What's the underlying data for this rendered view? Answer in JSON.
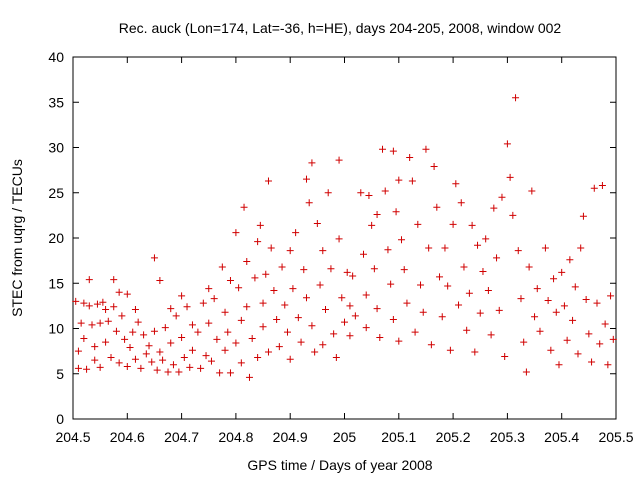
{
  "chart_data": {
    "type": "scatter",
    "title": "Rec. auck (Lon=174, Lat=-36, h=HE), days 204-205, 2008, window 002",
    "xlabel": "GPS time / Days of year 2008",
    "ylabel": "STEC from uqrg / TECUs",
    "xlim": [
      204.5,
      205.5
    ],
    "ylim": [
      0,
      40
    ],
    "xticks": [
      204.5,
      204.6,
      204.7,
      204.8,
      204.9,
      205,
      205.1,
      205.2,
      205.3,
      205.4,
      205.5
    ],
    "xtick_labels": [
      "204.5",
      "204.6",
      "204.7",
      "204.8",
      "204.9",
      "205",
      "205.1",
      "205.2",
      "205.3",
      "205.4",
      "205.5"
    ],
    "yticks": [
      0,
      5,
      10,
      15,
      20,
      25,
      30,
      35,
      40
    ],
    "ytick_labels": [
      "0",
      "5",
      "10",
      "15",
      "20",
      "25",
      "30",
      "35",
      "40"
    ],
    "grid": false,
    "marker": "plus",
    "color": "#d00000",
    "series": [
      {
        "name": "STEC",
        "points": [
          [
            204.505,
            13.0
          ],
          [
            204.51,
            5.6
          ],
          [
            204.51,
            7.5
          ],
          [
            204.515,
            10.6
          ],
          [
            204.52,
            12.8
          ],
          [
            204.52,
            8.9
          ],
          [
            204.525,
            5.5
          ],
          [
            204.53,
            15.4
          ],
          [
            204.53,
            12.5
          ],
          [
            204.535,
            10.4
          ],
          [
            204.54,
            8.0
          ],
          [
            204.54,
            6.5
          ],
          [
            204.545,
            12.7
          ],
          [
            204.55,
            10.6
          ],
          [
            204.55,
            5.7
          ],
          [
            204.555,
            12.9
          ],
          [
            204.56,
            12.1
          ],
          [
            204.56,
            8.5
          ],
          [
            204.565,
            10.8
          ],
          [
            204.57,
            6.8
          ],
          [
            204.575,
            15.4
          ],
          [
            204.575,
            12.4
          ],
          [
            204.58,
            9.7
          ],
          [
            204.585,
            14.0
          ],
          [
            204.585,
            6.2
          ],
          [
            204.59,
            11.4
          ],
          [
            204.595,
            8.8
          ],
          [
            204.6,
            13.8
          ],
          [
            204.6,
            5.8
          ],
          [
            204.605,
            7.9
          ],
          [
            204.61,
            9.6
          ],
          [
            204.615,
            12.1
          ],
          [
            204.615,
            6.6
          ],
          [
            204.62,
            10.7
          ],
          [
            204.625,
            5.6
          ],
          [
            204.63,
            9.3
          ],
          [
            204.635,
            7.2
          ],
          [
            204.64,
            8.1
          ],
          [
            204.645,
            6.3
          ],
          [
            204.65,
            17.8
          ],
          [
            204.65,
            9.7
          ],
          [
            204.655,
            5.4
          ],
          [
            204.66,
            15.3
          ],
          [
            204.66,
            7.4
          ],
          [
            204.665,
            6.5
          ],
          [
            204.67,
            10.1
          ],
          [
            204.675,
            5.2
          ],
          [
            204.68,
            12.2
          ],
          [
            204.68,
            8.4
          ],
          [
            204.685,
            6.0
          ],
          [
            204.69,
            11.4
          ],
          [
            204.695,
            5.2
          ],
          [
            204.7,
            13.6
          ],
          [
            204.7,
            9.0
          ],
          [
            204.705,
            6.8
          ],
          [
            204.71,
            12.4
          ],
          [
            204.715,
            5.7
          ],
          [
            204.72,
            10.4
          ],
          [
            204.72,
            7.6
          ],
          [
            204.73,
            9.6
          ],
          [
            204.735,
            5.6
          ],
          [
            204.74,
            12.8
          ],
          [
            204.745,
            7.0
          ],
          [
            204.75,
            14.4
          ],
          [
            204.75,
            10.6
          ],
          [
            204.755,
            6.4
          ],
          [
            204.76,
            13.3
          ],
          [
            204.765,
            8.8
          ],
          [
            204.77,
            5.1
          ],
          [
            204.775,
            16.8
          ],
          [
            204.78,
            11.8
          ],
          [
            204.78,
            7.6
          ],
          [
            204.785,
            9.6
          ],
          [
            204.79,
            15.3
          ],
          [
            204.79,
            5.1
          ],
          [
            204.8,
            20.6
          ],
          [
            204.8,
            8.4
          ],
          [
            204.805,
            14.5
          ],
          [
            204.81,
            10.9
          ],
          [
            204.81,
            6.2
          ],
          [
            204.815,
            23.4
          ],
          [
            204.82,
            17.4
          ],
          [
            204.82,
            12.4
          ],
          [
            204.825,
            4.6
          ],
          [
            204.83,
            8.9
          ],
          [
            204.835,
            15.6
          ],
          [
            204.84,
            19.6
          ],
          [
            204.84,
            6.8
          ],
          [
            204.845,
            21.4
          ],
          [
            204.85,
            12.8
          ],
          [
            204.85,
            10.2
          ],
          [
            204.855,
            16.0
          ],
          [
            204.86,
            26.3
          ],
          [
            204.86,
            7.4
          ],
          [
            204.865,
            18.9
          ],
          [
            204.87,
            14.2
          ],
          [
            204.875,
            11.0
          ],
          [
            204.88,
            8.0
          ],
          [
            204.885,
            16.8
          ],
          [
            204.89,
            12.6
          ],
          [
            204.895,
            9.6
          ],
          [
            204.9,
            18.6
          ],
          [
            204.9,
            6.6
          ],
          [
            204.905,
            14.4
          ],
          [
            204.91,
            20.6
          ],
          [
            204.915,
            11.2
          ],
          [
            204.92,
            8.5
          ],
          [
            204.925,
            16.5
          ],
          [
            204.93,
            26.5
          ],
          [
            204.93,
            13.4
          ],
          [
            204.935,
            23.9
          ],
          [
            204.94,
            28.3
          ],
          [
            204.94,
            10.3
          ],
          [
            204.945,
            7.4
          ],
          [
            204.95,
            21.6
          ],
          [
            204.955,
            14.8
          ],
          [
            204.96,
            18.6
          ],
          [
            204.96,
            8.2
          ],
          [
            204.965,
            12.1
          ],
          [
            204.97,
            25.0
          ],
          [
            204.975,
            16.6
          ],
          [
            204.98,
            9.4
          ],
          [
            204.985,
            6.8
          ],
          [
            204.99,
            28.6
          ],
          [
            204.99,
            19.9
          ],
          [
            204.995,
            13.4
          ],
          [
            205.0,
            10.7
          ],
          [
            205.005,
            16.2
          ],
          [
            205.01,
            12.5
          ],
          [
            205.01,
            9.2
          ],
          [
            205.015,
            15.8
          ],
          [
            205.02,
            11.4
          ],
          [
            205.03,
            25.0
          ],
          [
            205.035,
            18.2
          ],
          [
            205.04,
            13.7
          ],
          [
            205.04,
            10.1
          ],
          [
            205.045,
            24.7
          ],
          [
            205.05,
            21.4
          ],
          [
            205.055,
            16.6
          ],
          [
            205.06,
            22.6
          ],
          [
            205.06,
            12.2
          ],
          [
            205.065,
            9.0
          ],
          [
            205.07,
            29.8
          ],
          [
            205.075,
            25.2
          ],
          [
            205.08,
            18.7
          ],
          [
            205.085,
            14.9
          ],
          [
            205.09,
            29.6
          ],
          [
            205.09,
            11.0
          ],
          [
            205.095,
            22.9
          ],
          [
            205.1,
            26.4
          ],
          [
            205.1,
            8.6
          ],
          [
            205.105,
            19.8
          ],
          [
            205.11,
            16.5
          ],
          [
            205.115,
            12.8
          ],
          [
            205.12,
            28.9
          ],
          [
            205.125,
            26.3
          ],
          [
            205.13,
            9.6
          ],
          [
            205.135,
            21.5
          ],
          [
            205.14,
            14.8
          ],
          [
            205.145,
            11.8
          ],
          [
            205.15,
            29.8
          ],
          [
            205.155,
            18.9
          ],
          [
            205.16,
            8.2
          ],
          [
            205.165,
            27.9
          ],
          [
            205.17,
            23.4
          ],
          [
            205.175,
            15.7
          ],
          [
            205.18,
            11.3
          ],
          [
            205.185,
            18.9
          ],
          [
            205.19,
            14.7
          ],
          [
            205.195,
            7.6
          ],
          [
            205.2,
            21.5
          ],
          [
            205.205,
            26.0
          ],
          [
            205.21,
            12.6
          ],
          [
            205.215,
            23.9
          ],
          [
            205.22,
            16.8
          ],
          [
            205.225,
            9.8
          ],
          [
            205.23,
            13.9
          ],
          [
            205.235,
            21.4
          ],
          [
            205.24,
            7.4
          ],
          [
            205.245,
            19.2
          ],
          [
            205.25,
            11.7
          ],
          [
            205.255,
            16.3
          ],
          [
            205.26,
            19.9
          ],
          [
            205.265,
            14.2
          ],
          [
            205.27,
            9.3
          ],
          [
            205.275,
            23.3
          ],
          [
            205.28,
            17.8
          ],
          [
            205.285,
            12.0
          ],
          [
            205.29,
            24.5
          ],
          [
            205.295,
            6.9
          ],
          [
            205.3,
            30.4
          ],
          [
            205.305,
            26.7
          ],
          [
            205.31,
            22.5
          ],
          [
            205.315,
            35.5
          ],
          [
            205.32,
            18.6
          ],
          [
            205.325,
            13.3
          ],
          [
            205.33,
            8.5
          ],
          [
            205.335,
            5.2
          ],
          [
            205.34,
            16.8
          ],
          [
            205.345,
            25.2
          ],
          [
            205.35,
            11.3
          ],
          [
            205.355,
            14.4
          ],
          [
            205.36,
            9.7
          ],
          [
            205.37,
            18.9
          ],
          [
            205.375,
            13.1
          ],
          [
            205.38,
            7.6
          ],
          [
            205.385,
            15.5
          ],
          [
            205.39,
            11.8
          ],
          [
            205.395,
            6.0
          ],
          [
            205.4,
            16.2
          ],
          [
            205.405,
            12.5
          ],
          [
            205.41,
            8.7
          ],
          [
            205.415,
            17.6
          ],
          [
            205.42,
            10.9
          ],
          [
            205.425,
            14.6
          ],
          [
            205.43,
            7.2
          ],
          [
            205.435,
            18.9
          ],
          [
            205.44,
            22.4
          ],
          [
            205.445,
            13.2
          ],
          [
            205.45,
            9.4
          ],
          [
            205.455,
            6.3
          ],
          [
            205.46,
            25.5
          ],
          [
            205.465,
            12.8
          ],
          [
            205.47,
            8.3
          ],
          [
            205.475,
            25.8
          ],
          [
            205.48,
            10.5
          ],
          [
            205.485,
            6.0
          ],
          [
            205.49,
            13.6
          ],
          [
            205.495,
            8.8
          ]
        ]
      }
    ]
  }
}
